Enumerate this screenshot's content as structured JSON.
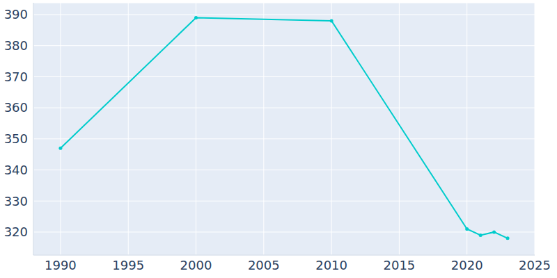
{
  "chart_data": {
    "type": "line",
    "x": [
      1990,
      2000,
      2010,
      2020,
      2021,
      2022,
      2023
    ],
    "values": [
      347,
      389,
      388,
      321,
      319,
      320,
      318
    ],
    "color": "#00cccc",
    "xlim": [
      1988,
      2025
    ],
    "xticks": [
      1990,
      1995,
      2000,
      2005,
      2010,
      2015,
      2020,
      2025
    ],
    "ylim": [
      312.6,
      393.8
    ],
    "yticks": [
      320,
      330,
      340,
      350,
      360,
      370,
      380,
      390
    ],
    "grid": true,
    "marker": "circle"
  }
}
